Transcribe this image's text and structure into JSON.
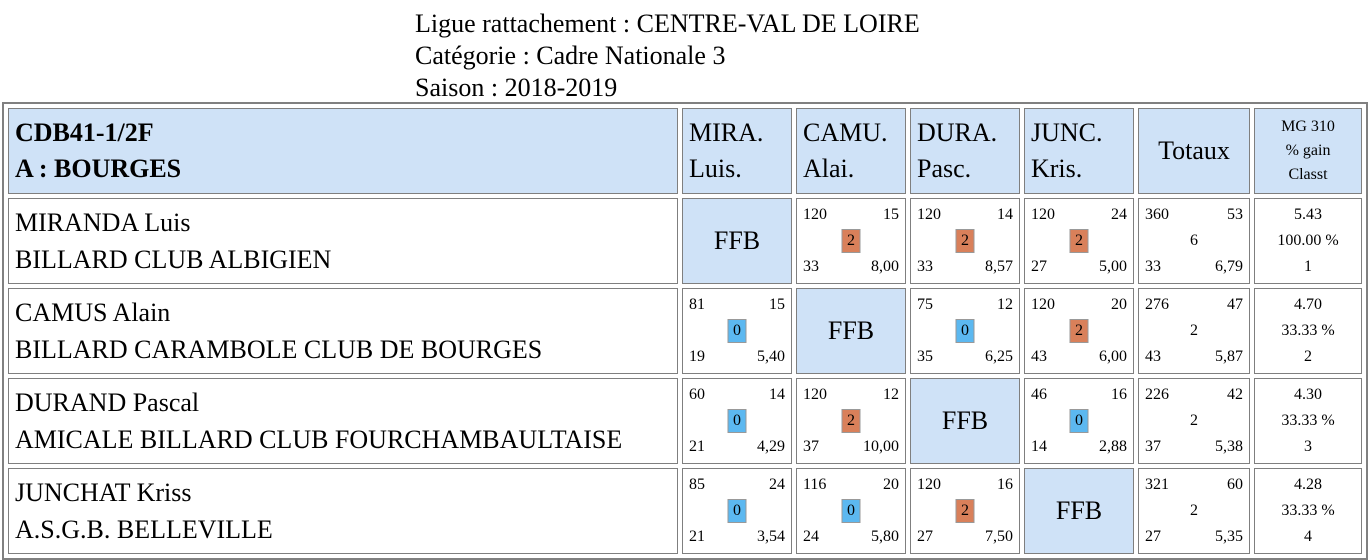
{
  "header": {
    "ligue": "Ligue rattachement : CENTRE-VAL DE LOIRE",
    "categorie": "Catégorie : Cadre Nationale 3",
    "saison": "Saison : 2018-2019"
  },
  "colors": {
    "header_bg": "#cfe2f7",
    "win": "#d9805a",
    "loss": "#5cb8f0"
  },
  "group": {
    "line1": "CDB41-1/2F",
    "line2": "A : BOURGES"
  },
  "columns": [
    {
      "line1": "MIRA.",
      "line2": "Luis."
    },
    {
      "line1": "CAMU.",
      "line2": "Alai."
    },
    {
      "line1": "DURA.",
      "line2": "Pasc."
    },
    {
      "line1": "JUNC.",
      "line2": "Kris."
    }
  ],
  "totals_label": "Totaux",
  "mg_header": {
    "line1": "MG 310",
    "line2": "% gain",
    "line3": "Classt"
  },
  "ffb_label": "FFB",
  "rows": [
    {
      "name": "MIRANDA Luis",
      "club": "BILLARD CLUB ALBIGIEN",
      "cells": [
        null,
        {
          "pts": "120",
          "serie": "15",
          "res": "2",
          "rep": "33",
          "moy": "8,00"
        },
        {
          "pts": "120",
          "serie": "14",
          "res": "2",
          "rep": "33",
          "moy": "8,57"
        },
        {
          "pts": "120",
          "serie": "24",
          "res": "2",
          "rep": "27",
          "moy": "5,00"
        }
      ],
      "totals": {
        "pts": "360",
        "serie": "53",
        "res": "6",
        "rep": "33",
        "moy": "6,79"
      },
      "mg": {
        "mg": "5.43",
        "pct": "100.00 %",
        "rank": "1"
      }
    },
    {
      "name": "CAMUS Alain",
      "club": "BILLARD CARAMBOLE CLUB DE BOURGES",
      "cells": [
        {
          "pts": "81",
          "serie": "15",
          "res": "0",
          "rep": "19",
          "moy": "5,40"
        },
        null,
        {
          "pts": "75",
          "serie": "12",
          "res": "0",
          "rep": "35",
          "moy": "6,25"
        },
        {
          "pts": "120",
          "serie": "20",
          "res": "2",
          "rep": "43",
          "moy": "6,00"
        }
      ],
      "totals": {
        "pts": "276",
        "serie": "47",
        "res": "2",
        "rep": "43",
        "moy": "5,87"
      },
      "mg": {
        "mg": "4.70",
        "pct": "33.33 %",
        "rank": "2"
      }
    },
    {
      "name": "DURAND Pascal",
      "club": "AMICALE BILLARD CLUB FOURCHAMBAULTAISE",
      "cells": [
        {
          "pts": "60",
          "serie": "14",
          "res": "0",
          "rep": "21",
          "moy": "4,29"
        },
        {
          "pts": "120",
          "serie": "12",
          "res": "2",
          "rep": "37",
          "moy": "10,00"
        },
        null,
        {
          "pts": "46",
          "serie": "16",
          "res": "0",
          "rep": "14",
          "moy": "2,88"
        }
      ],
      "totals": {
        "pts": "226",
        "serie": "42",
        "res": "2",
        "rep": "37",
        "moy": "5,38"
      },
      "mg": {
        "mg": "4.30",
        "pct": "33.33 %",
        "rank": "3"
      }
    },
    {
      "name": "JUNCHAT Kriss",
      "club": "A.S.G.B. BELLEVILLE",
      "cells": [
        {
          "pts": "85",
          "serie": "24",
          "res": "0",
          "rep": "21",
          "moy": "3,54"
        },
        {
          "pts": "116",
          "serie": "20",
          "res": "0",
          "rep": "24",
          "moy": "5,80"
        },
        {
          "pts": "120",
          "serie": "16",
          "res": "2",
          "rep": "27",
          "moy": "7,50"
        },
        null
      ],
      "totals": {
        "pts": "321",
        "serie": "60",
        "res": "2",
        "rep": "27",
        "moy": "5,35"
      },
      "mg": {
        "mg": "4.28",
        "pct": "33.33 %",
        "rank": "4"
      }
    }
  ]
}
